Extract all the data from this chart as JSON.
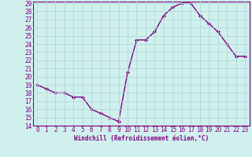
{
  "x": [
    0,
    1,
    2,
    3,
    4,
    5,
    6,
    7,
    8,
    9,
    10,
    11,
    12,
    13,
    14,
    15,
    16,
    17,
    18,
    19,
    20,
    21,
    22,
    23
  ],
  "y": [
    19,
    18.5,
    18,
    18,
    17.5,
    17.5,
    16,
    15.5,
    15,
    14.5,
    20.5,
    24.5,
    24.5,
    25.5,
    27.5,
    28.5,
    29,
    29,
    27.5,
    26.5,
    25.5,
    24,
    22.5,
    22.5
  ],
  "line_color": "#800080",
  "marker": "D",
  "marker_size": 2.0,
  "bg_color": "#d0f0ee",
  "grid_color": "#b0d8d8",
  "xlabel": "Windchill (Refroidissement éolien,°C)",
  "ylim": [
    14,
    29
  ],
  "xlim": [
    -0.5,
    23.5
  ],
  "yticks": [
    14,
    15,
    16,
    17,
    18,
    19,
    20,
    21,
    22,
    23,
    24,
    25,
    26,
    27,
    28,
    29
  ],
  "xticks": [
    0,
    1,
    2,
    3,
    4,
    5,
    6,
    7,
    8,
    9,
    10,
    11,
    12,
    13,
    14,
    15,
    16,
    17,
    18,
    19,
    20,
    21,
    22,
    23
  ],
  "axis_label_color": "#800080",
  "tick_color": "#800080",
  "border_color": "#800080",
  "tick_fontsize": 5.5,
  "xlabel_fontsize": 5.5,
  "linewidth": 1.0
}
